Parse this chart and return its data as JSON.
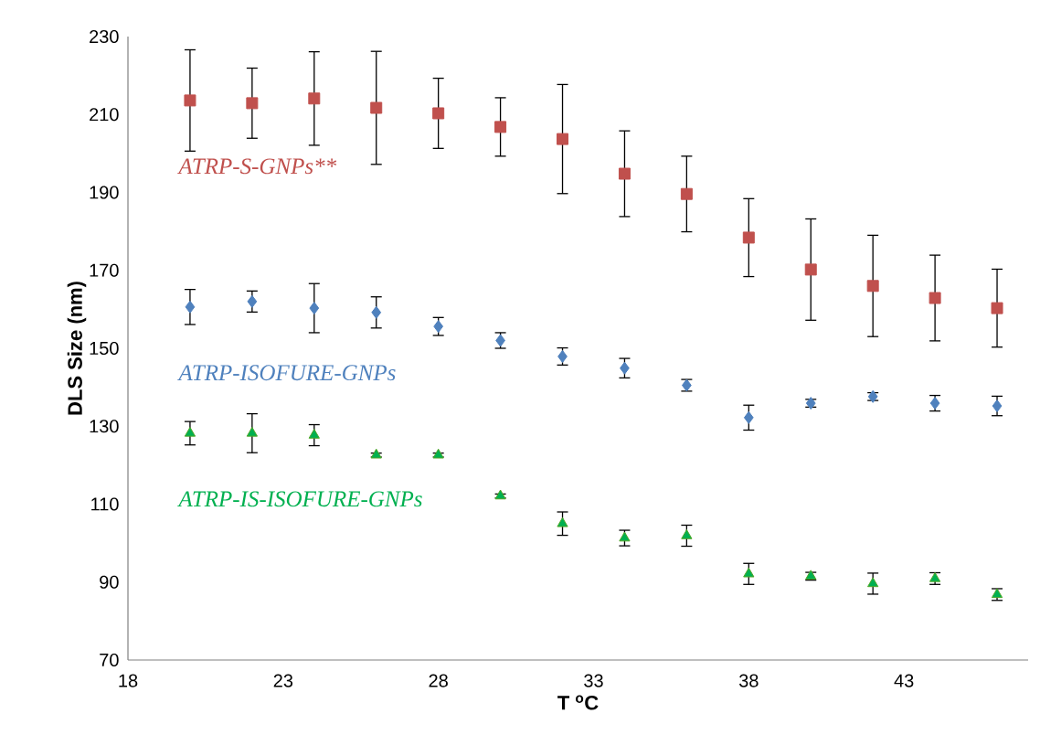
{
  "chart_data": {
    "type": "scatter",
    "xlabel": "T $^{o}$C",
    "ylabel": "DLS Size (nm)",
    "x": [
      20,
      22,
      24,
      26,
      28,
      30,
      32,
      34,
      36,
      38,
      40,
      42,
      44,
      46
    ],
    "xlim": [
      18,
      47
    ],
    "xticks": [
      18,
      23,
      28,
      33,
      38,
      43
    ],
    "ylim": [
      70,
      230
    ],
    "yticks": [
      70,
      90,
      110,
      130,
      150,
      170,
      190,
      210,
      230
    ],
    "grid": false,
    "series": [
      {
        "name": "ATRP-S-GNPs**",
        "color": "#c0504d",
        "marker": "square",
        "values": [
          213.6,
          212.9,
          214.1,
          211.7,
          210.3,
          206.8,
          203.7,
          194.8,
          189.6,
          178.4,
          170.2,
          166.0,
          162.9,
          160.3
        ],
        "errors": [
          13,
          9,
          12,
          14.5,
          9,
          7.5,
          14,
          11,
          9.7,
          10,
          13,
          13,
          11,
          10
        ]
      },
      {
        "name": "ATRP-ISOFURE-GNPs",
        "color": "#4f81bd",
        "marker": "diamond",
        "values": [
          160.6,
          162.0,
          160.3,
          159.2,
          155.6,
          152.0,
          147.9,
          144.9,
          140.5,
          132.2,
          135.9,
          137.6,
          135.9,
          135.2
        ],
        "errors": [
          4.5,
          2.7,
          6.3,
          4,
          2.3,
          2,
          2.2,
          2.5,
          1.5,
          3.2,
          1,
          1,
          2,
          2.5
        ]
      },
      {
        "name": "ATRP-IS-ISOFURE-GNPs",
        "color": "#00b050",
        "marker": "triangle",
        "values": [
          128.2,
          128.2,
          127.7,
          122.6,
          122.6,
          112.1,
          105.0,
          101.3,
          101.9,
          92.1,
          91.5,
          89.6,
          90.9,
          86.8
        ],
        "errors": [
          3,
          5,
          2.7,
          0.5,
          0.5,
          0.5,
          3,
          2,
          2.7,
          2.7,
          1,
          2.7,
          1.5,
          1.5
        ]
      }
    ]
  }
}
